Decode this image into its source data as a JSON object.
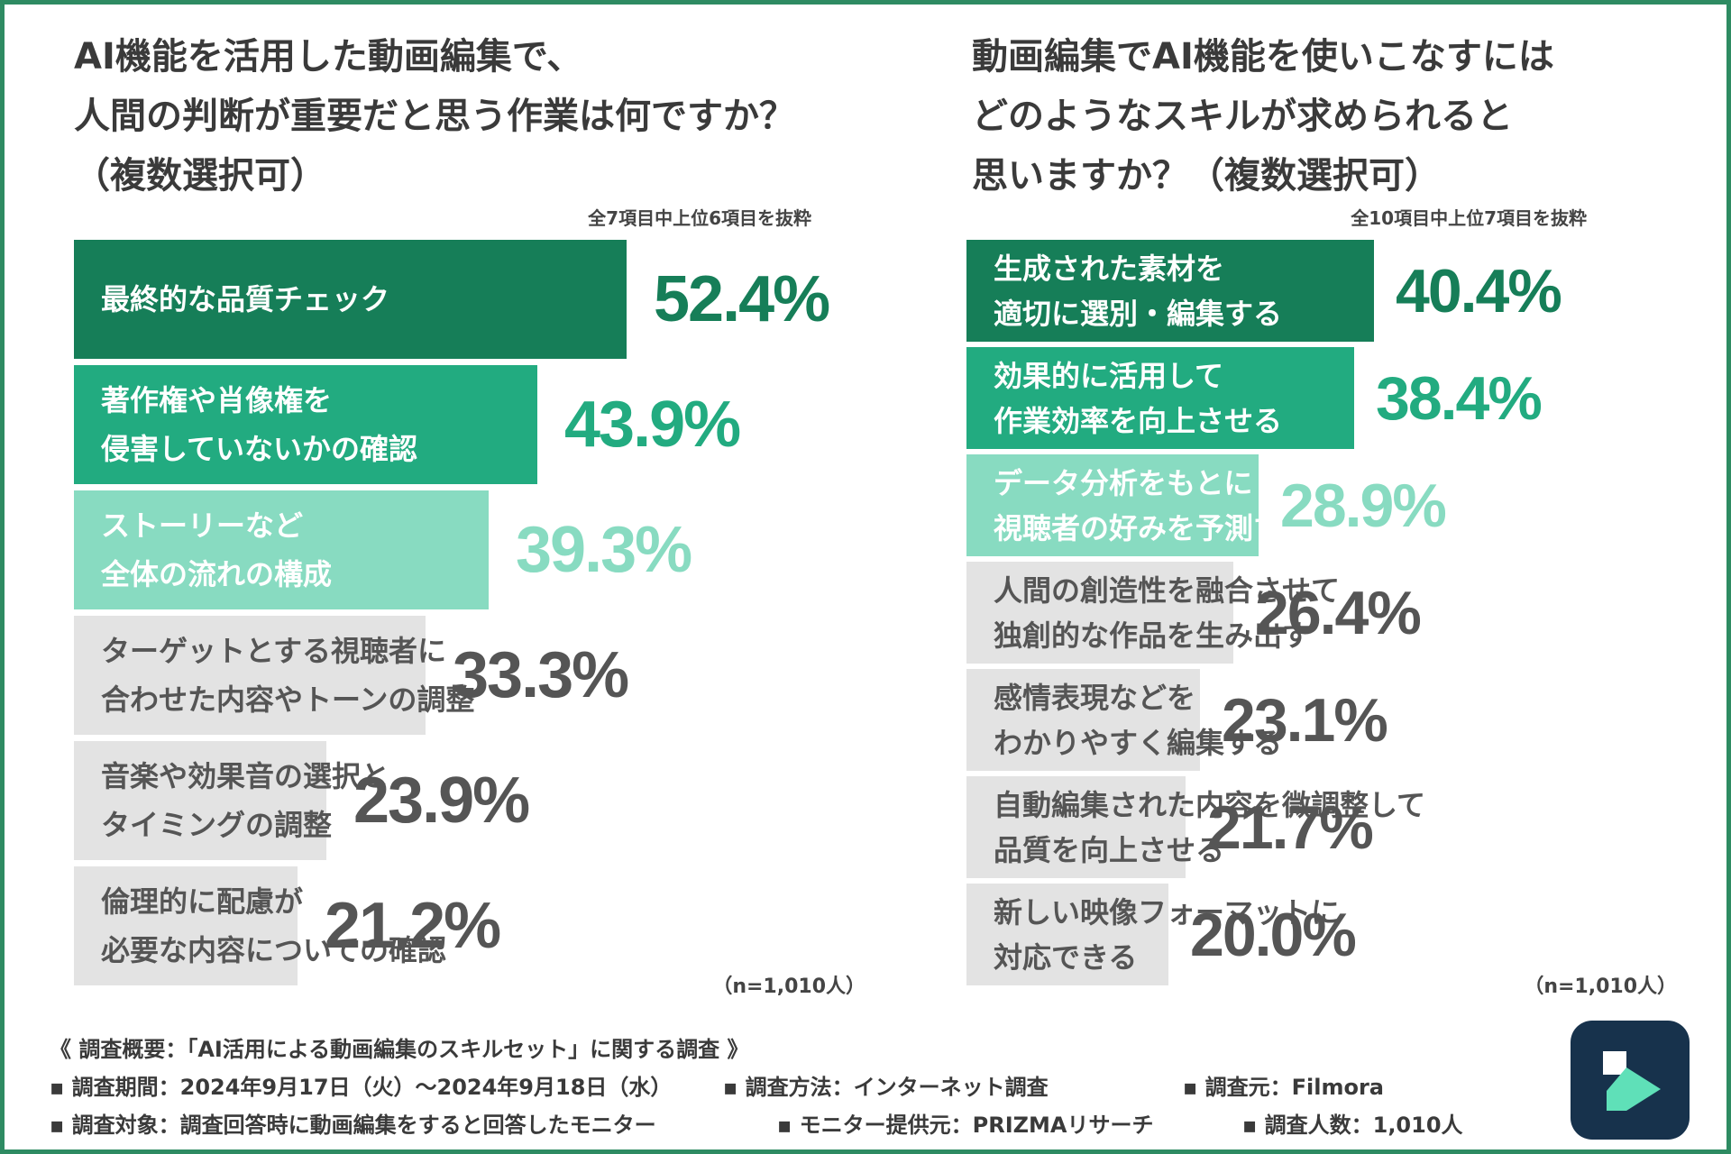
{
  "colors": {
    "frame": "#2e8b62",
    "tier1_bar": "#167e58",
    "tier1_value": "#167e58",
    "tier2_bar": "#22ab80",
    "tier2_value": "#22ab80",
    "tier3_bar": "#88dbc1",
    "tier3_value": "#88dbc1",
    "tier4_bar": "#e3e3e3",
    "tier4_value": "#555555",
    "logo_bg": "#17324c",
    "logo_accent": "#5fe0b8"
  },
  "chart_data": [
    {
      "type": "bar",
      "orientation": "horizontal",
      "title": "AI機能を活用した動画編集で、\n人間の判断が重要だと思う作業は何ですか？\n（複数選択可）",
      "note": "全7項目中上位6項目を抜粋",
      "sample_label": "（n=1,010人）",
      "unit": "%",
      "xlim": [
        0,
        100
      ],
      "categories": [
        "最終的な品質チェック",
        "著作権や肖像権を\n侵害していないかの確認",
        "ストーリーなど\n全体の流れの構成",
        "ターゲットとする視聴者に\n合わせた内容やトーンの調整",
        "音楽や効果音の選択と\nタイミングの調整",
        "倫理的に配慮が\n必要な内容についての確認"
      ],
      "values": [
        52.4,
        43.9,
        39.3,
        33.3,
        23.9,
        21.2
      ],
      "value_labels": [
        "52.4%",
        "43.9%",
        "39.3%",
        "33.3%",
        "23.9%",
        "21.2%"
      ],
      "tiers": [
        1,
        2,
        3,
        4,
        4,
        4
      ]
    },
    {
      "type": "bar",
      "orientation": "horizontal",
      "title": "動画編集でAI機能を使いこなすには\nどのようなスキルが求められると\n思いますか？（複数選択可）",
      "note": "全10項目中上位7項目を抜粋",
      "sample_label": "（n=1,010人）",
      "unit": "%",
      "xlim": [
        0,
        100
      ],
      "categories": [
        "生成された素材を\n適切に選別・編集する",
        "効果的に活用して\n作業効率を向上させる",
        "データ分析をもとに\n視聴者の好みを予測する",
        "人間の創造性を融合させて\n独創的な作品を生み出す",
        "感情表現などを\nわかりやすく編集する",
        "自動編集された内容を微調整して\n品質を向上させる",
        "新しい映像フォーマットに\n対応できる"
      ],
      "values": [
        40.4,
        38.4,
        28.9,
        26.4,
        23.1,
        21.7,
        20.0
      ],
      "value_labels": [
        "40.4%",
        "38.4%",
        "28.9%",
        "26.4%",
        "23.1%",
        "21.7%",
        "20.0%"
      ],
      "tiers": [
        1,
        2,
        3,
        4,
        4,
        4,
        4
      ]
    }
  ],
  "footer": {
    "heading": "《 調査概要：「AI活用による動画編集のスキルセット」に関する調査 》",
    "items": [
      "▪ 調査期間：2024年9月17日（火）～2024年9月18日（水）",
      "▪ 調査方法：インターネット調査",
      "▪ 調査元：Filmora",
      "▪ 調査対象：調査回答時に動画編集をすると回答したモニター",
      "▪ モニター提供元：PRIZMAリサーチ",
      "▪ 調査人数：1,010人"
    ]
  },
  "logo": {
    "icon": "filmora-logo-icon"
  }
}
